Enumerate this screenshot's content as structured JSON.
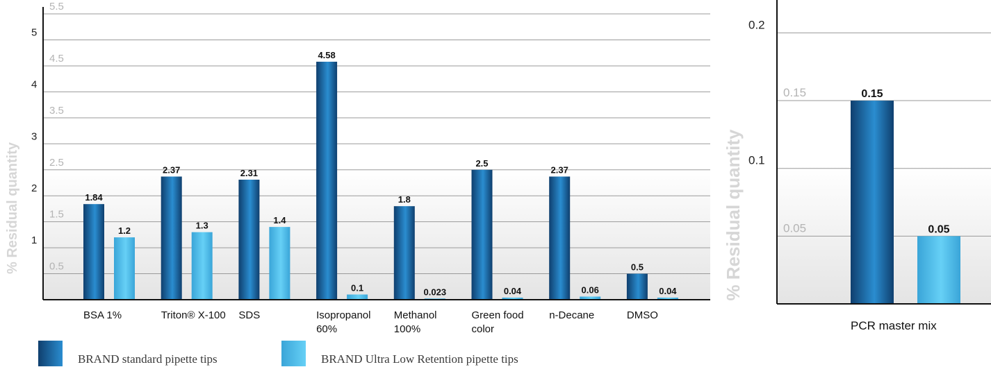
{
  "chart_data": [
    {
      "type": "bar",
      "ylabel": "% Residual quantity",
      "ylim": [
        0,
        5.75
      ],
      "major_ticks": [
        "5",
        "4",
        "3",
        "2",
        "1"
      ],
      "major_tick_values": [
        5,
        4,
        3,
        2,
        1
      ],
      "minor_ticks": [
        "5.5",
        "4.5",
        "3.5",
        "2.5",
        "1.5",
        "0.5"
      ],
      "minor_tick_values": [
        5.5,
        4.5,
        3.5,
        2.5,
        1.5,
        0.5
      ],
      "grid": true,
      "categories": [
        "BSA 1%",
        "Triton® X-100",
        "SDS",
        "Isopropanol\n60%",
        "Methanol\n100%",
        "Green food\ncolor",
        "n-Decane",
        "DMSO"
      ],
      "series": [
        {
          "name": "BRAND standard pipette tips",
          "values": [
            1.84,
            2.37,
            2.31,
            4.58,
            1.8,
            2.5,
            2.37,
            0.5
          ],
          "labels": [
            "1.84",
            "2.37",
            "2.31",
            "4.58",
            "1.8",
            "2.5",
            "2.37",
            "0.5"
          ]
        },
        {
          "name": "BRAND Ultra Low Retention pipette tips",
          "values": [
            1.2,
            1.3,
            1.4,
            0.1,
            0.023,
            0.04,
            0.06,
            0.04
          ],
          "labels": [
            "1.2",
            "1.3",
            "1.4",
            "0.1",
            "0.023",
            "0.04",
            "0.06",
            "0.04"
          ]
        }
      ]
    },
    {
      "type": "bar",
      "ylabel": "% Residual quantity",
      "ylim": [
        0,
        0.22
      ],
      "major_ticks": [
        "0.2",
        "0.1"
      ],
      "major_tick_values": [
        0.2,
        0.1
      ],
      "minor_ticks": [
        "0.15",
        "0.05"
      ],
      "minor_tick_values": [
        0.15,
        0.05
      ],
      "grid": true,
      "categories": [
        "PCR master mix"
      ],
      "series": [
        {
          "name": "BRAND standard pipette tips",
          "values": [
            0.15
          ],
          "labels": [
            "0.15"
          ]
        },
        {
          "name": "BRAND Ultra Low Retention pipette tips",
          "values": [
            0.05
          ],
          "labels": [
            "0.05"
          ]
        }
      ]
    }
  ],
  "legend": {
    "items": [
      {
        "label": "BRAND standard pipette tips",
        "color": "#1f74b8"
      },
      {
        "label": "BRAND Ultra Low Retention pipette tips",
        "color": "#55c4ee"
      }
    ]
  },
  "colors": {
    "standard_dark": "#0f3f6e",
    "standard_light": "#2a8dd0",
    "ulr_dark": "#3aa5d8",
    "ulr_light": "#66d0f6",
    "grid": "#9a9a9a",
    "axis": "#111111",
    "minor_tick_text": "#b4b4b4",
    "major_tick_text": "#222222",
    "ylabel_text": "#d6d6d6"
  }
}
